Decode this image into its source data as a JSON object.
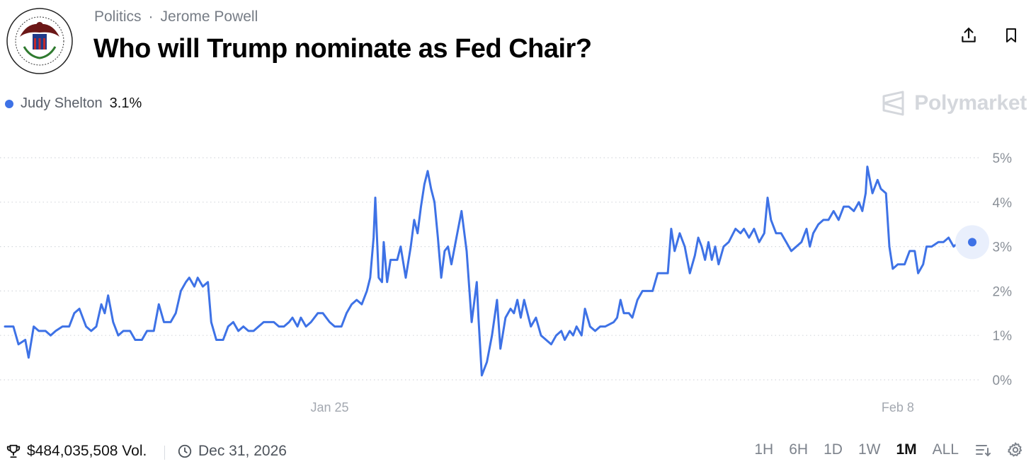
{
  "header": {
    "category": "Politics",
    "separator": "·",
    "subcategory": "Jerome Powell",
    "title": "Who will Trump nominate as Fed Chair?"
  },
  "legend": {
    "name": "Judy Shelton",
    "value": "3.1%"
  },
  "watermark": {
    "brand": "Polymarket"
  },
  "colors": {
    "series": "#3e72e6",
    "grid": "#d5d8dd",
    "muted": "#8a9098"
  },
  "chart_data": {
    "type": "line",
    "xlabel": "",
    "ylabel": "",
    "yunit": "%",
    "ylim": [
      0,
      5
    ],
    "yticks": [
      0,
      1,
      2,
      3,
      4,
      5
    ],
    "xlim": [
      "2026-01-17",
      "2026-02-15"
    ],
    "xticks": [
      {
        "x": "2026-01-25",
        "label": "Jan 25"
      },
      {
        "x": "2026-02-08",
        "label": "Feb 8"
      }
    ],
    "grid": true,
    "series": [
      {
        "name": "Judy Shelton",
        "last_value": 3.1,
        "points": [
          [
            "2026-01-17T00:00",
            1.2
          ],
          [
            "2026-01-17T05:00",
            1.2
          ],
          [
            "2026-01-17T08:00",
            0.8
          ],
          [
            "2026-01-17T12:00",
            0.9
          ],
          [
            "2026-01-17T14:00",
            0.5
          ],
          [
            "2026-01-17T17:00",
            1.2
          ],
          [
            "2026-01-17T20:00",
            1.1
          ],
          [
            "2026-01-18T00:00",
            1.1
          ],
          [
            "2026-01-18T03:00",
            1.0
          ],
          [
            "2026-01-18T06:00",
            1.1
          ],
          [
            "2026-01-18T10:00",
            1.2
          ],
          [
            "2026-01-18T14:00",
            1.2
          ],
          [
            "2026-01-18T17:00",
            1.5
          ],
          [
            "2026-01-18T20:00",
            1.6
          ],
          [
            "2026-01-19T00:00",
            1.2
          ],
          [
            "2026-01-19T03:00",
            1.1
          ],
          [
            "2026-01-19T06:00",
            1.2
          ],
          [
            "2026-01-19T09:00",
            1.7
          ],
          [
            "2026-01-19T11:00",
            1.5
          ],
          [
            "2026-01-19T13:00",
            1.9
          ],
          [
            "2026-01-19T16:00",
            1.3
          ],
          [
            "2026-01-19T19:00",
            1.0
          ],
          [
            "2026-01-19T22:00",
            1.1
          ],
          [
            "2026-01-20T02:00",
            1.1
          ],
          [
            "2026-01-20T05:00",
            0.9
          ],
          [
            "2026-01-20T09:00",
            0.9
          ],
          [
            "2026-01-20T12:00",
            1.1
          ],
          [
            "2026-01-20T16:00",
            1.1
          ],
          [
            "2026-01-20T19:00",
            1.7
          ],
          [
            "2026-01-20T22:00",
            1.3
          ],
          [
            "2026-01-21T02:00",
            1.3
          ],
          [
            "2026-01-21T05:00",
            1.5
          ],
          [
            "2026-01-21T08:00",
            2.0
          ],
          [
            "2026-01-21T11:00",
            2.2
          ],
          [
            "2026-01-21T13:00",
            2.3
          ],
          [
            "2026-01-21T16:00",
            2.1
          ],
          [
            "2026-01-21T18:00",
            2.3
          ],
          [
            "2026-01-21T21:00",
            2.1
          ],
          [
            "2026-01-22T00:00",
            2.2
          ],
          [
            "2026-01-22T02:00",
            1.3
          ],
          [
            "2026-01-22T05:00",
            0.9
          ],
          [
            "2026-01-22T09:00",
            0.9
          ],
          [
            "2026-01-22T12:00",
            1.2
          ],
          [
            "2026-01-22T15:00",
            1.3
          ],
          [
            "2026-01-22T18:00",
            1.1
          ],
          [
            "2026-01-22T21:00",
            1.2
          ],
          [
            "2026-01-23T00:00",
            1.1
          ],
          [
            "2026-01-23T03:00",
            1.1
          ],
          [
            "2026-01-23T06:00",
            1.2
          ],
          [
            "2026-01-23T09:00",
            1.3
          ],
          [
            "2026-01-23T12:00",
            1.3
          ],
          [
            "2026-01-23T15:00",
            1.3
          ],
          [
            "2026-01-23T18:00",
            1.2
          ],
          [
            "2026-01-23T21:00",
            1.2
          ],
          [
            "2026-01-24T00:00",
            1.3
          ],
          [
            "2026-01-24T02:00",
            1.4
          ],
          [
            "2026-01-24T05:00",
            1.2
          ],
          [
            "2026-01-24T07:00",
            1.4
          ],
          [
            "2026-01-24T10:00",
            1.2
          ],
          [
            "2026-01-24T13:00",
            1.3
          ],
          [
            "2026-01-24T17:00",
            1.5
          ],
          [
            "2026-01-24T20:00",
            1.5
          ],
          [
            "2026-01-25T00:00",
            1.3
          ],
          [
            "2026-01-25T03:00",
            1.2
          ],
          [
            "2026-01-25T07:00",
            1.2
          ],
          [
            "2026-01-25T10:00",
            1.5
          ],
          [
            "2026-01-25T13:00",
            1.7
          ],
          [
            "2026-01-25T16:00",
            1.8
          ],
          [
            "2026-01-25T19:00",
            1.7
          ],
          [
            "2026-01-25T22:00",
            2.0
          ],
          [
            "2026-01-26T00:00",
            2.3
          ],
          [
            "2026-01-26T02:00",
            3.2
          ],
          [
            "2026-01-26T03:00",
            4.1
          ],
          [
            "2026-01-26T05:00",
            2.3
          ],
          [
            "2026-01-26T07:00",
            2.2
          ],
          [
            "2026-01-26T08:00",
            3.1
          ],
          [
            "2026-01-26T10:00",
            2.2
          ],
          [
            "2026-01-26T12:00",
            2.7
          ],
          [
            "2026-01-26T14:00",
            2.7
          ],
          [
            "2026-01-26T16:00",
            2.7
          ],
          [
            "2026-01-26T18:00",
            3.0
          ],
          [
            "2026-01-26T21:00",
            2.3
          ],
          [
            "2026-01-27T00:00",
            3.0
          ],
          [
            "2026-01-27T02:00",
            3.6
          ],
          [
            "2026-01-27T04:00",
            3.3
          ],
          [
            "2026-01-27T06:00",
            3.9
          ],
          [
            "2026-01-27T08:00",
            4.4
          ],
          [
            "2026-01-27T10:00",
            4.7
          ],
          [
            "2026-01-27T12:00",
            4.3
          ],
          [
            "2026-01-27T14:00",
            4.0
          ],
          [
            "2026-01-27T16:00",
            3.2
          ],
          [
            "2026-01-27T18:00",
            2.3
          ],
          [
            "2026-01-27T20:00",
            2.9
          ],
          [
            "2026-01-27T22:00",
            3.0
          ],
          [
            "2026-01-28T00:00",
            2.6
          ],
          [
            "2026-01-28T03:00",
            3.2
          ],
          [
            "2026-01-28T06:00",
            3.8
          ],
          [
            "2026-01-28T09:00",
            2.9
          ],
          [
            "2026-01-28T12:00",
            1.3
          ],
          [
            "2026-01-28T15:00",
            2.2
          ],
          [
            "2026-01-28T16:00",
            1.4
          ],
          [
            "2026-01-28T18:00",
            0.1
          ],
          [
            "2026-01-28T21:00",
            0.4
          ],
          [
            "2026-01-29T00:00",
            1.0
          ],
          [
            "2026-01-29T03:00",
            1.8
          ],
          [
            "2026-01-29T05:00",
            0.7
          ],
          [
            "2026-01-29T08:00",
            1.4
          ],
          [
            "2026-01-29T11:00",
            1.6
          ],
          [
            "2026-01-29T13:00",
            1.5
          ],
          [
            "2026-01-29T15:00",
            1.8
          ],
          [
            "2026-01-29T17:00",
            1.4
          ],
          [
            "2026-01-29T19:00",
            1.8
          ],
          [
            "2026-01-29T21:00",
            1.5
          ],
          [
            "2026-01-29T23:00",
            1.2
          ],
          [
            "2026-01-30T02:00",
            1.4
          ],
          [
            "2026-01-30T05:00",
            1.0
          ],
          [
            "2026-01-30T08:00",
            0.9
          ],
          [
            "2026-01-30T11:00",
            0.8
          ],
          [
            "2026-01-30T14:00",
            1.0
          ],
          [
            "2026-01-30T17:00",
            1.1
          ],
          [
            "2026-01-30T19:00",
            0.9
          ],
          [
            "2026-01-30T22:00",
            1.1
          ],
          [
            "2026-01-31T00:00",
            1.0
          ],
          [
            "2026-01-31T02:00",
            1.2
          ],
          [
            "2026-01-31T05:00",
            1.0
          ],
          [
            "2026-01-31T07:00",
            1.6
          ],
          [
            "2026-01-31T10:00",
            1.2
          ],
          [
            "2026-01-31T13:00",
            1.1
          ],
          [
            "2026-01-31T16:00",
            1.2
          ],
          [
            "2026-01-31T19:00",
            1.2
          ],
          [
            "2026-02-01T00:00",
            1.3
          ],
          [
            "2026-02-01T02:00",
            1.4
          ],
          [
            "2026-02-01T04:00",
            1.8
          ],
          [
            "2026-02-01T06:00",
            1.5
          ],
          [
            "2026-02-01T09:00",
            1.5
          ],
          [
            "2026-02-01T11:00",
            1.4
          ],
          [
            "2026-02-01T14:00",
            1.8
          ],
          [
            "2026-02-01T17:00",
            2.0
          ],
          [
            "2026-02-01T20:00",
            2.0
          ],
          [
            "2026-02-01T23:00",
            2.0
          ],
          [
            "2026-02-02T02:00",
            2.4
          ],
          [
            "2026-02-02T05:00",
            2.4
          ],
          [
            "2026-02-02T08:00",
            2.4
          ],
          [
            "2026-02-02T10:00",
            3.4
          ],
          [
            "2026-02-02T12:00",
            2.9
          ],
          [
            "2026-02-02T15:00",
            3.3
          ],
          [
            "2026-02-02T18:00",
            3.0
          ],
          [
            "2026-02-02T21:00",
            2.4
          ],
          [
            "2026-02-03T00:00",
            2.8
          ],
          [
            "2026-02-03T02:00",
            3.2
          ],
          [
            "2026-02-03T04:00",
            3.0
          ],
          [
            "2026-02-03T06:00",
            2.7
          ],
          [
            "2026-02-03T08:00",
            3.1
          ],
          [
            "2026-02-03T10:00",
            2.7
          ],
          [
            "2026-02-03T12:00",
            3.0
          ],
          [
            "2026-02-03T14:00",
            2.6
          ],
          [
            "2026-02-03T17:00",
            3.0
          ],
          [
            "2026-02-03T20:00",
            3.1
          ],
          [
            "2026-02-04T00:00",
            3.4
          ],
          [
            "2026-02-04T03:00",
            3.3
          ],
          [
            "2026-02-04T05:00",
            3.4
          ],
          [
            "2026-02-04T08:00",
            3.2
          ],
          [
            "2026-02-04T11:00",
            3.4
          ],
          [
            "2026-02-04T14:00",
            3.1
          ],
          [
            "2026-02-04T17:00",
            3.3
          ],
          [
            "2026-02-04T19:00",
            4.1
          ],
          [
            "2026-02-04T21:00",
            3.6
          ],
          [
            "2026-02-05T00:00",
            3.3
          ],
          [
            "2026-02-05T03:00",
            3.3
          ],
          [
            "2026-02-05T06:00",
            3.1
          ],
          [
            "2026-02-05T09:00",
            2.9
          ],
          [
            "2026-02-05T12:00",
            3.0
          ],
          [
            "2026-02-05T15:00",
            3.1
          ],
          [
            "2026-02-05T18:00",
            3.4
          ],
          [
            "2026-02-05T20:00",
            3.0
          ],
          [
            "2026-02-05T22:00",
            3.3
          ],
          [
            "2026-02-06T01:00",
            3.5
          ],
          [
            "2026-02-06T04:00",
            3.6
          ],
          [
            "2026-02-06T07:00",
            3.6
          ],
          [
            "2026-02-06T10:00",
            3.8
          ],
          [
            "2026-02-06T13:00",
            3.6
          ],
          [
            "2026-02-06T16:00",
            3.9
          ],
          [
            "2026-02-06T19:00",
            3.9
          ],
          [
            "2026-02-06T22:00",
            3.8
          ],
          [
            "2026-02-07T01:00",
            4.0
          ],
          [
            "2026-02-07T03:00",
            3.8
          ],
          [
            "2026-02-07T05:00",
            4.2
          ],
          [
            "2026-02-07T06:00",
            4.8
          ],
          [
            "2026-02-07T09:00",
            4.2
          ],
          [
            "2026-02-07T12:00",
            4.5
          ],
          [
            "2026-02-07T14:00",
            4.3
          ],
          [
            "2026-02-07T17:00",
            4.2
          ],
          [
            "2026-02-07T19:00",
            3.0
          ],
          [
            "2026-02-07T21:00",
            2.5
          ],
          [
            "2026-02-08T00:00",
            2.6
          ],
          [
            "2026-02-08T04:00",
            2.6
          ],
          [
            "2026-02-08T07:00",
            2.9
          ],
          [
            "2026-02-08T10:00",
            2.9
          ],
          [
            "2026-02-08T12:00",
            2.4
          ],
          [
            "2026-02-08T15:00",
            2.6
          ],
          [
            "2026-02-08T17:00",
            3.0
          ],
          [
            "2026-02-08T20:00",
            3.0
          ],
          [
            "2026-02-09T00:00",
            3.1
          ],
          [
            "2026-02-09T03:00",
            3.1
          ],
          [
            "2026-02-09T06:00",
            3.2
          ],
          [
            "2026-02-09T09:00",
            3.0
          ],
          [
            "2026-02-09T12:00",
            3.1
          ],
          [
            "2026-02-09T16:00",
            3.0
          ],
          [
            "2026-02-09T20:00",
            3.1
          ]
        ]
      }
    ]
  },
  "footer": {
    "volume": "$484,035,508 Vol.",
    "end_date": "Dec 31, 2026",
    "ranges": [
      {
        "label": "1H",
        "active": false
      },
      {
        "label": "6H",
        "active": false
      },
      {
        "label": "1D",
        "active": false
      },
      {
        "label": "1W",
        "active": false
      },
      {
        "label": "1M",
        "active": true
      },
      {
        "label": "ALL",
        "active": false
      }
    ]
  }
}
